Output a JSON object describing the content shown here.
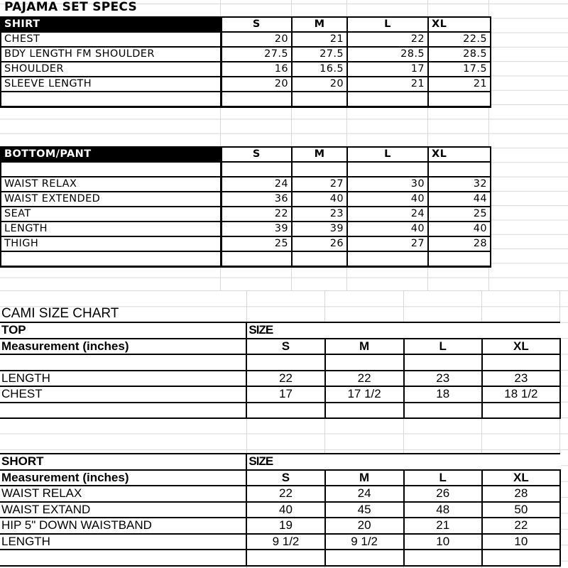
{
  "pajama": {
    "title": "PAJAMA SET SPECS",
    "shirt": {
      "header": "SHIRT",
      "sizes": [
        "S",
        "M",
        "L",
        "XL"
      ],
      "rows": [
        {
          "label": "CHEST",
          "values": [
            "20",
            "21",
            "22",
            "22.5"
          ]
        },
        {
          "label": "BDY LENGTH FM SHOULDER",
          "values": [
            "27.5",
            "27.5",
            "28.5",
            "28.5"
          ]
        },
        {
          "label": "SHOULDER",
          "values": [
            "16",
            "16.5",
            "17",
            "17.5"
          ]
        },
        {
          "label": "SLEEVE LENGTH",
          "values": [
            "20",
            "20",
            "21",
            "21"
          ]
        }
      ]
    },
    "bottom": {
      "header": "BOTTOM/PANT",
      "sizes": [
        "S",
        "M",
        "L",
        "XL"
      ],
      "rows": [
        {
          "label": "WAIST RELAX",
          "values": [
            "24",
            "27",
            "30",
            "32"
          ]
        },
        {
          "label": "WAIST EXTENDED",
          "values": [
            "36",
            "40",
            "40",
            "44"
          ]
        },
        {
          "label": "SEAT",
          "values": [
            "22",
            "23",
            "24",
            "25"
          ]
        },
        {
          "label": "LENGTH",
          "values": [
            "39",
            "39",
            "40",
            "40"
          ]
        },
        {
          "label": "THIGH",
          "values": [
            "25",
            "26",
            "27",
            "28"
          ]
        }
      ]
    }
  },
  "cami": {
    "title": "CAMI SIZE CHART",
    "top": {
      "header": "TOP",
      "size_label": "SIZE",
      "measurement_label": "Measurement (inches)",
      "sizes": [
        "S",
        "M",
        "L",
        "XL"
      ],
      "rows": [
        {
          "label": "LENGTH",
          "values": [
            "22",
            "22",
            "23",
            "23"
          ]
        },
        {
          "label": "CHEST",
          "values": [
            "17",
            "17 1/2",
            "18",
            "18 1/2"
          ]
        }
      ]
    },
    "short": {
      "header": "SHORT",
      "size_label": "SIZE",
      "measurement_label": "Measurement (inches)",
      "sizes": [
        "S",
        "M",
        "L",
        "XL"
      ],
      "rows": [
        {
          "label": "WAIST RELAX",
          "values": [
            "22",
            "24",
            "26",
            "28"
          ]
        },
        {
          "label": "WAIST EXTAND",
          "values": [
            "40",
            "45",
            "48",
            "50"
          ]
        },
        {
          "label": "HIP 5\" DOWN WAISTBAND",
          "values": [
            "19",
            "20",
            "21",
            "22"
          ]
        },
        {
          "label": "LENGTH",
          "values": [
            "9 1/2",
            "9 1/2",
            "10",
            "10"
          ]
        }
      ]
    }
  }
}
